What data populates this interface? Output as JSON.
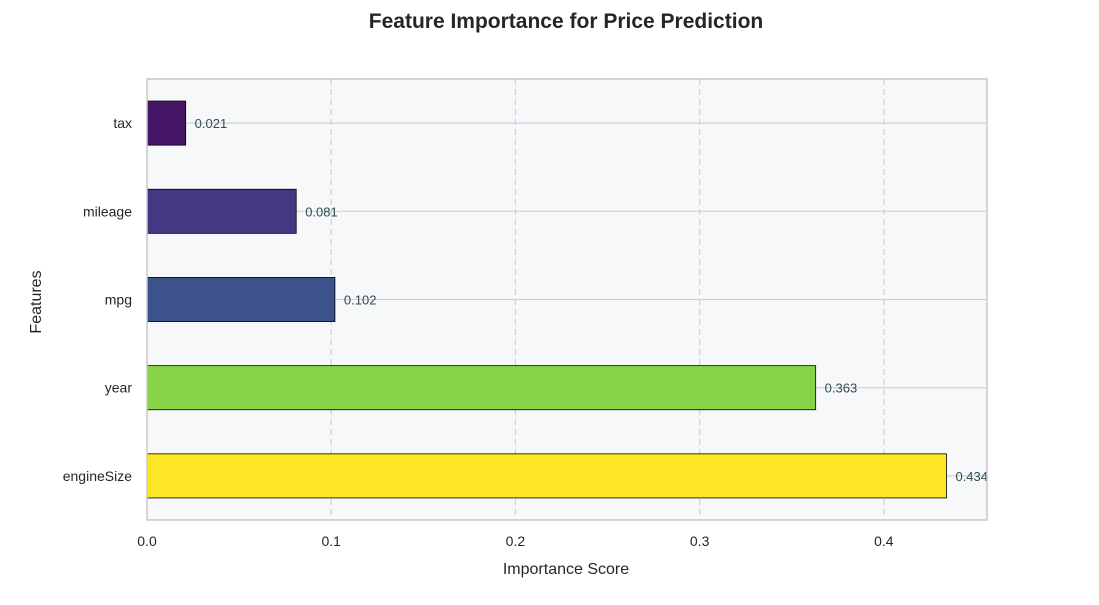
{
  "chart_data": {
    "type": "bar",
    "orientation": "horizontal",
    "title": "Feature Importance for Price Prediction",
    "xlabel": "Importance Score",
    "ylabel": "Features",
    "categories": [
      "engineSize",
      "year",
      "mpg",
      "mileage",
      "tax"
    ],
    "values": [
      0.434,
      0.363,
      0.102,
      0.081,
      0.021
    ],
    "value_labels": [
      "0.434",
      "0.363",
      "0.102",
      "0.081",
      "0.021"
    ],
    "bar_colors": [
      "#fde725",
      "#86d549",
      "#3b528b",
      "#453882",
      "#481668"
    ],
    "xlim": [
      0,
      0.456
    ],
    "xticks": [
      0.0,
      0.1,
      0.2,
      0.3,
      0.4
    ],
    "xtick_labels": [
      "0.0",
      "0.1",
      "0.2",
      "0.3",
      "0.4"
    ],
    "grid": true,
    "plot_background": "#f7f8fa"
  }
}
